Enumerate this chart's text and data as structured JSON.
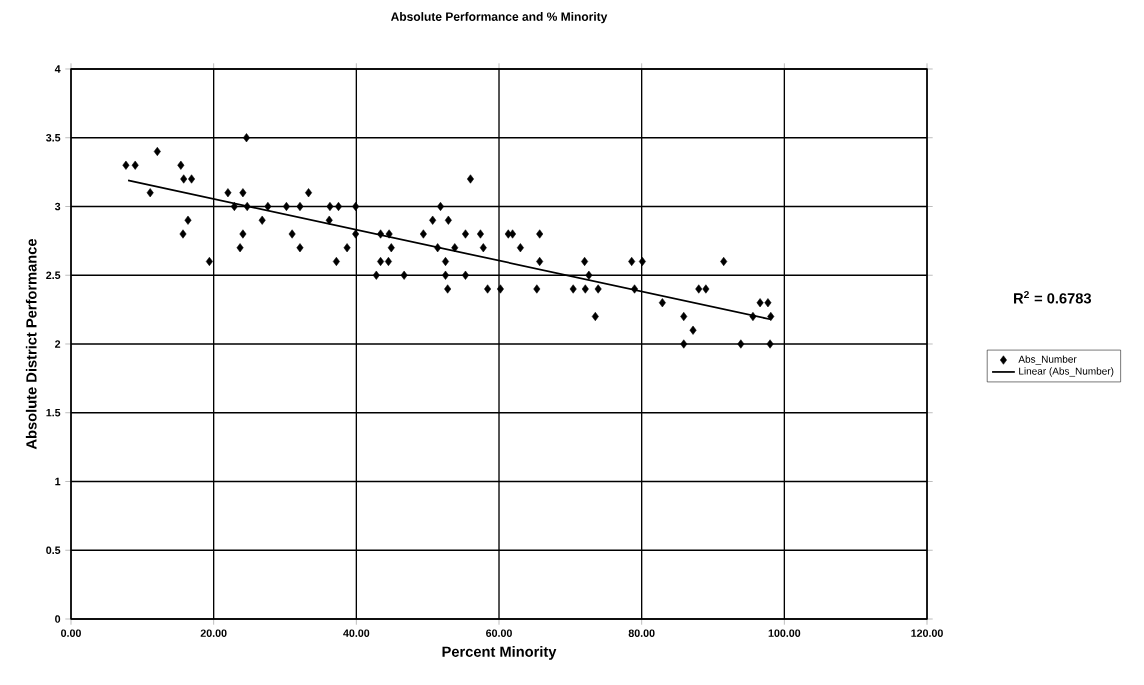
{
  "chart_data": {
    "type": "scatter",
    "title": "Absolute Performance and % Minority",
    "xlabel": "Percent Minority",
    "ylabel": "Absolute District Performance",
    "annotations": [
      "R$^{2}$ = 0.6783"
    ],
    "xlim": [
      0,
      120
    ],
    "ylim": [
      0,
      4
    ],
    "xticks": [
      {
        "value": 0,
        "label": "0.00"
      },
      {
        "value": 20,
        "label": "20.00"
      },
      {
        "value": 40,
        "label": "40.00"
      },
      {
        "value": 60,
        "label": "60.00"
      },
      {
        "value": 80,
        "label": "80.00"
      },
      {
        "value": 100,
        "label": "100.00"
      },
      {
        "value": 120,
        "label": "120.00"
      }
    ],
    "yticks": [
      0,
      0.5,
      1,
      1.5,
      2,
      2.5,
      3,
      3.5,
      4
    ],
    "grid": true,
    "legend": "right",
    "series": [
      {
        "name": "Abs_Number",
        "color": "#000000",
        "marker": "diamond",
        "x": [
          7.7,
          9.0,
          12.1,
          11.1,
          15.4,
          15.8,
          16.9,
          16.4,
          15.7,
          19.4,
          22.0,
          22.9,
          23.7,
          24.1,
          24.1,
          24.6,
          24.7,
          26.8,
          27.6,
          30.2,
          31.0,
          32.1,
          32.1,
          33.3,
          36.2,
          36.3,
          37.2,
          37.5,
          38.7,
          39.9,
          39.9,
          42.8,
          43.4,
          43.4,
          44.5,
          44.6,
          44.9,
          46.7,
          49.4,
          50.7,
          51.4,
          51.8,
          52.5,
          52.5,
          52.8,
          52.9,
          53.8,
          55.3,
          55.3,
          56.0,
          57.4,
          57.8,
          58.4,
          60.2,
          61.3,
          61.9,
          63.0,
          65.3,
          65.7,
          65.7,
          70.4,
          72.0,
          72.1,
          72.6,
          73.5,
          73.9,
          78.6,
          79.0,
          80.1,
          82.9,
          85.9,
          85.9,
          87.2,
          88.0,
          89.0,
          91.5,
          93.9,
          95.6,
          96.6,
          97.7,
          98.1,
          98.0
        ],
        "values": [
          3.3,
          3.3,
          3.4,
          3.1,
          3.3,
          3.2,
          3.2,
          2.9,
          2.8,
          2.6,
          3.1,
          3.0,
          2.7,
          3.1,
          2.8,
          3.5,
          3.0,
          2.9,
          3.0,
          3.0,
          2.8,
          2.7,
          3.0,
          3.1,
          2.9,
          3.0,
          2.6,
          3.0,
          2.7,
          3.0,
          2.8,
          2.5,
          2.8,
          2.6,
          2.6,
          2.8,
          2.7,
          2.5,
          2.8,
          2.9,
          2.7,
          3.0,
          2.5,
          2.6,
          2.4,
          2.9,
          2.7,
          2.8,
          2.5,
          3.2,
          2.8,
          2.7,
          2.4,
          2.4,
          2.8,
          2.8,
          2.7,
          2.4,
          2.8,
          2.6,
          2.4,
          2.6,
          2.4,
          2.5,
          2.2,
          2.4,
          2.6,
          2.4,
          2.6,
          2.3,
          2.2,
          2.0,
          2.1,
          2.4,
          2.4,
          2.6,
          2.0,
          2.2,
          2.3,
          2.3,
          2.2,
          2.0
        ]
      },
      {
        "name": "Linear (Abs_Number)",
        "type": "line",
        "color": "#000000",
        "marker": "none",
        "x": [
          8,
          98
        ],
        "values": [
          3.19,
          2.18
        ]
      }
    ]
  }
}
